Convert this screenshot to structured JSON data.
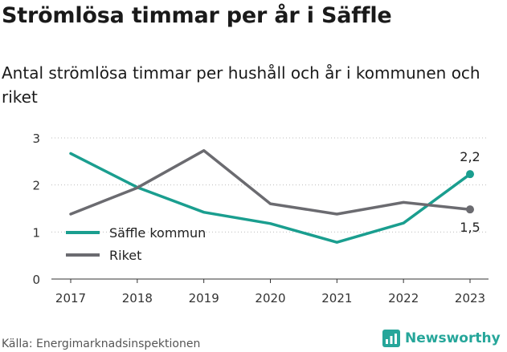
{
  "title": "Strömlösa timmar per år i Säffle",
  "subtitle": "Antal strömlösa timmar per hushåll och år i kommunen och riket",
  "source": "Källa: Energimarknadsinspektionen",
  "brand": {
    "name": "Newsworthy",
    "icon": "newsworthy-bar-chart-logo-icon",
    "color": "#26a69a"
  },
  "chart_data": {
    "type": "line",
    "x": [
      2017,
      2018,
      2019,
      2020,
      2021,
      2022,
      2023
    ],
    "ylim": [
      0,
      3
    ],
    "yticks": [
      0,
      1,
      2,
      3
    ],
    "grid": "horizontal-dotted",
    "legend_position": "bottom-left",
    "series": [
      {
        "name": "Säffle kommun",
        "color": "#1a9e8f",
        "values": [
          2.67,
          1.95,
          1.42,
          1.18,
          0.78,
          1.19,
          2.23
        ],
        "end_label": "2,2"
      },
      {
        "name": "Riket",
        "color": "#6b6b70",
        "values": [
          1.38,
          1.94,
          2.73,
          1.6,
          1.38,
          1.63,
          1.48
        ],
        "end_label": "1,5"
      }
    ]
  }
}
